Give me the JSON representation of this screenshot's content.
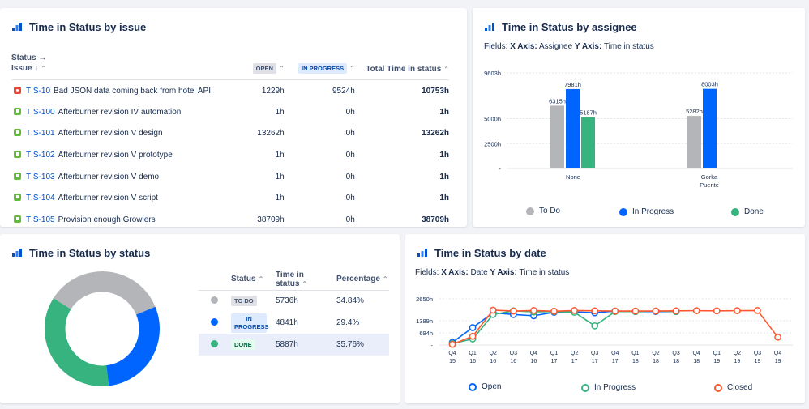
{
  "colors": {
    "todo": "#b3b5b8",
    "in_progress": "#0065ff",
    "done": "#36b37e",
    "closed": "#ff5630",
    "link": "#0052cc"
  },
  "issue_card": {
    "title": "Time in Status by issue",
    "header": {
      "status": "Status →",
      "issue": "Issue ↓",
      "open": "OPEN",
      "in_progress": "IN PROGRESS",
      "total": "Total Time in status"
    },
    "rows": [
      {
        "type": "bug",
        "key": "TIS-10",
        "summary": "Bad JSON data coming back from hotel API",
        "open": "1229h",
        "in_progress": "9524h",
        "total": "10753h"
      },
      {
        "type": "story",
        "key": "TIS-100",
        "summary": "Afterburner revision IV automation",
        "open": "1h",
        "in_progress": "0h",
        "total": "1h"
      },
      {
        "type": "story",
        "key": "TIS-101",
        "summary": "Afterburner revision V design",
        "open": "13262h",
        "in_progress": "0h",
        "total": "13262h"
      },
      {
        "type": "story",
        "key": "TIS-102",
        "summary": "Afterburner revision V prototype",
        "open": "1h",
        "in_progress": "0h",
        "total": "1h"
      },
      {
        "type": "story",
        "key": "TIS-103",
        "summary": "Afterburner revision V demo",
        "open": "1h",
        "in_progress": "0h",
        "total": "1h"
      },
      {
        "type": "story",
        "key": "TIS-104",
        "summary": "Afterburner revision V script",
        "open": "1h",
        "in_progress": "0h",
        "total": "1h"
      },
      {
        "type": "story",
        "key": "TIS-105",
        "summary": "Provision enough Growlers",
        "open": "38709h",
        "in_progress": "0h",
        "total": "38709h"
      }
    ]
  },
  "assignee_card": {
    "title": "Time in Status by assignee",
    "fields_x_label": "X Axis:",
    "fields_x_value": "Assignee",
    "fields_y_label": "Y Axis:",
    "fields_y_value": "Time in status",
    "fields_prefix": "Fields:",
    "legend": [
      "To Do",
      "In Progress",
      "Done"
    ]
  },
  "status_card": {
    "title": "Time in Status by status",
    "headers": {
      "status": "Status",
      "time": "Time in status",
      "percentage": "Percentage"
    },
    "rows": [
      {
        "status": "TO DO",
        "time": "5736h",
        "percentage": "34.84%",
        "color": "#b3b5b8"
      },
      {
        "status": "IN PROGRESS",
        "time": "4841h",
        "percentage": "29.4%",
        "color": "#0065ff"
      },
      {
        "status": "DONE",
        "time": "5887h",
        "percentage": "35.76%",
        "color": "#36b37e"
      }
    ]
  },
  "date_card": {
    "title": "Time in Status by date",
    "fields_prefix": "Fields:",
    "fields_x_label": "X Axis:",
    "fields_x_value": "Date",
    "fields_y_label": "Y Axis:",
    "fields_y_value": "Time in status",
    "legend": [
      "Open",
      "In Progress",
      "Closed"
    ]
  },
  "chart_data": [
    {
      "type": "bar",
      "categories": [
        "None",
        "Gorka Puente"
      ],
      "series": [
        {
          "name": "To Do",
          "values": [
            6315,
            5282
          ]
        },
        {
          "name": "In Progress",
          "values": [
            7981,
            8003
          ]
        },
        {
          "name": "Done",
          "values": [
            5187,
            null
          ]
        }
      ],
      "data_labels": [
        [
          "6315h",
          "5282h"
        ],
        [
          "7981h",
          "8003h"
        ],
        [
          "5187h",
          ""
        ]
      ],
      "y_ticks": [
        "9603h",
        "5000h",
        "2500h",
        "-"
      ],
      "y_tick_values": [
        9603,
        5000,
        2500,
        0
      ],
      "ylim": [
        0,
        9603
      ],
      "grid": true,
      "legend_position": "bottom"
    },
    {
      "type": "pie",
      "donut": true,
      "labels": [
        "To Do",
        "In Progress",
        "Done"
      ],
      "values": [
        34.84,
        29.4,
        35.76
      ]
    },
    {
      "type": "line",
      "x_top": [
        "Q4",
        "Q1",
        "Q2",
        "Q3",
        "Q4",
        "Q1",
        "Q2",
        "Q3",
        "Q4",
        "Q1",
        "Q2",
        "Q3",
        "Q4",
        "Q1",
        "Q2",
        "Q3",
        "Q4"
      ],
      "x_bottom": [
        "15",
        "16",
        "16",
        "16",
        "16",
        "17",
        "17",
        "17",
        "17",
        "18",
        "18",
        "18",
        "18",
        "19",
        "19",
        "19",
        "19"
      ],
      "y_ticks": [
        "2650h",
        "1389h",
        "694h",
        "-"
      ],
      "y_tick_values": [
        2650,
        1389,
        694,
        0
      ],
      "ylim": [
        0,
        2650
      ],
      "series": [
        {
          "name": "Open",
          "values": [
            150,
            1000,
            1850,
            1750,
            1680,
            1880,
            1900,
            1850,
            1950,
            1920,
            1920,
            1920,
            null,
            null,
            null,
            null,
            null
          ]
        },
        {
          "name": "In Progress",
          "values": [
            80,
            350,
            1750,
            1960,
            1900,
            1920,
            1880,
            1100,
            1920,
            1920,
            1950,
            1920,
            null,
            null,
            null,
            null,
            null
          ]
        },
        {
          "name": "Closed",
          "values": [
            40,
            500,
            2000,
            1950,
            1980,
            1940,
            1980,
            1960,
            1950,
            1950,
            1950,
            1960,
            1970,
            1960,
            1970,
            1980,
            450
          ]
        }
      ],
      "grid": true,
      "legend_position": "bottom"
    }
  ]
}
